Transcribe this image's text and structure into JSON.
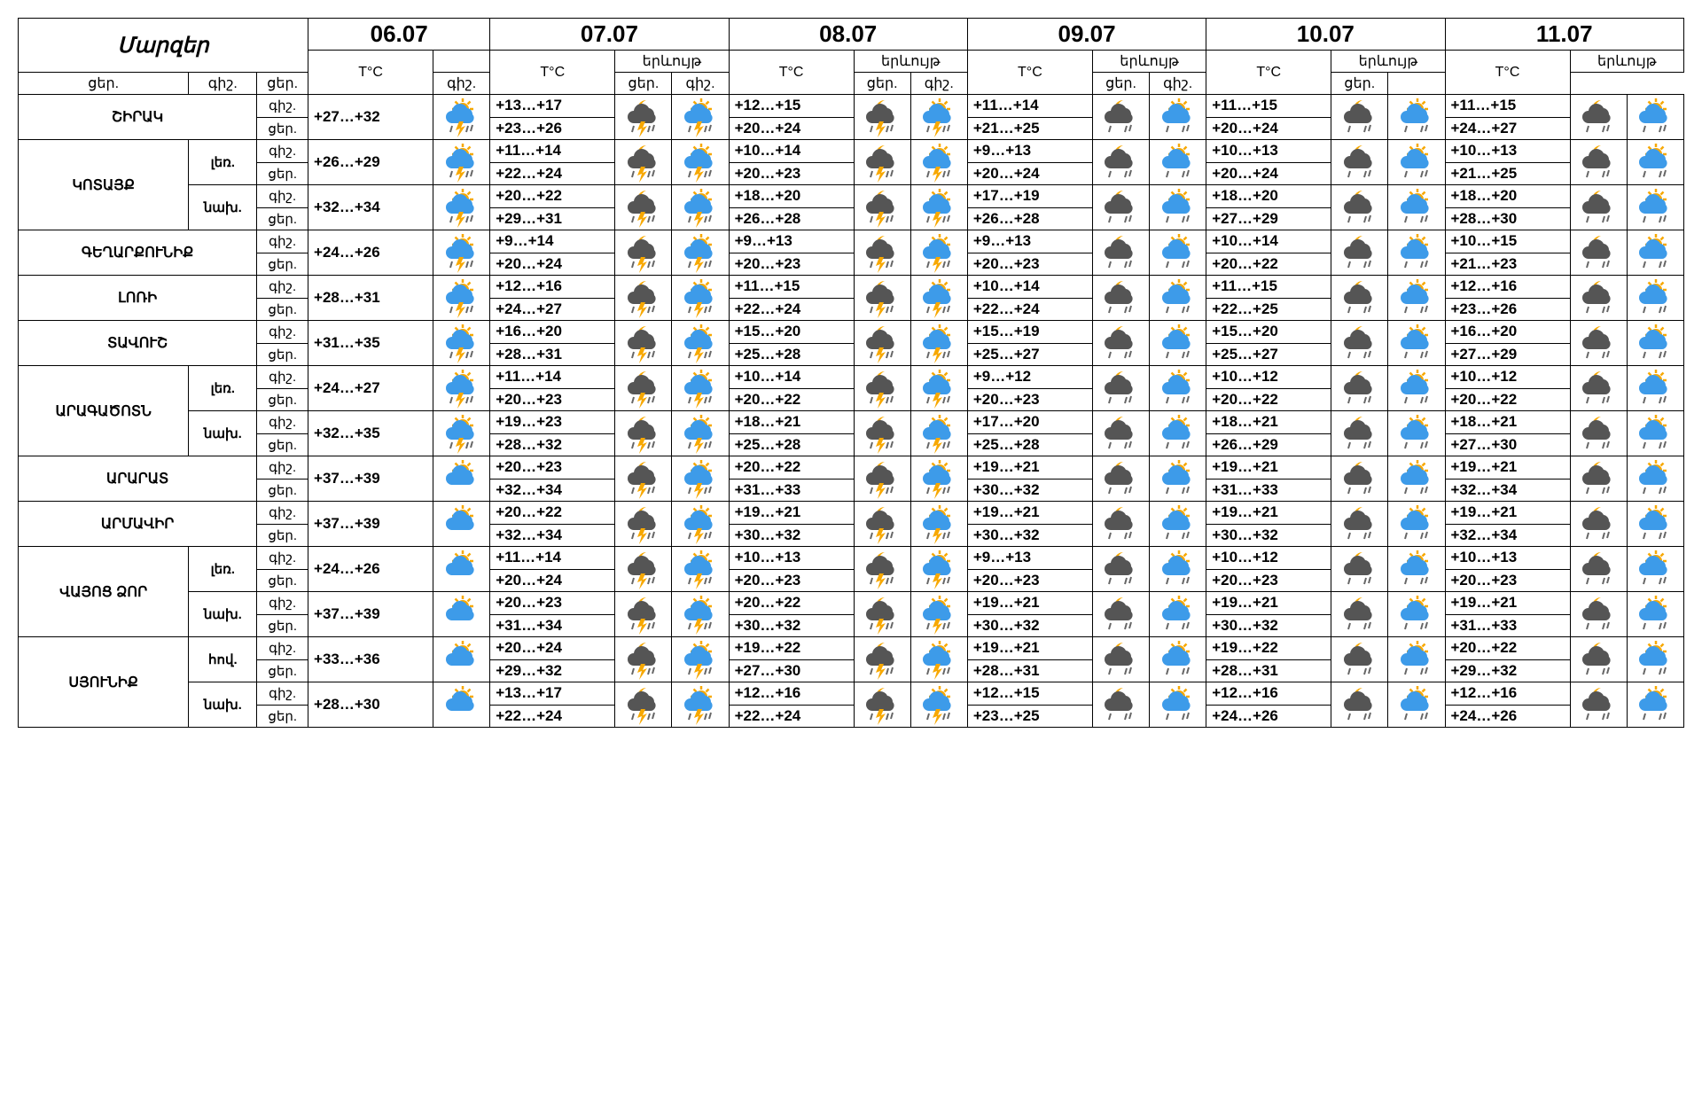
{
  "headers": {
    "regions_label": "Մարզեր",
    "dates": [
      "06.07",
      "07.07",
      "08.07",
      "09.07",
      "10.07",
      "11.07"
    ],
    "temp_label": "T°C",
    "weather_label": "երևույթ",
    "night_label": "գիշ.",
    "day_label": "ցեր."
  },
  "icons": {
    "sun_storm": {
      "sun": "#f7a800",
      "cloud": "#3d9be9",
      "bolt": "#f7a800",
      "rain": "#666"
    },
    "sun_cloud": {
      "sun": "#f7a800",
      "cloud": "#3d9be9"
    },
    "moon_storm": {
      "moon": "#f7a800",
      "cloud": "#555",
      "bolt": "#f7a800",
      "rain": "#666"
    },
    "moon_cloud": {
      "moon": "#f7a800",
      "cloud": "#555",
      "rain": "#666"
    },
    "sun_storm_b": {
      "sun": "#f7a800",
      "cloud": "#3d9be9",
      "bolt": "#f7a800",
      "rain": "#666"
    },
    "sun_rain": {
      "sun": "#f7a800",
      "cloud": "#3d9be9",
      "rain": "#666"
    }
  },
  "rows": [
    {
      "region": "ՇԻՐԱԿ",
      "subs": [
        {
          "d0": {
            "t": "+27…+32",
            "di": "sun_storm"
          },
          "d": [
            {
              "tn": "+13…+17",
              "td": "+23…+26",
              "ni": "moon_storm",
              "di": "sun_storm_b"
            },
            {
              "tn": "+12…+15",
              "td": "+20…+24",
              "ni": "moon_storm",
              "di": "sun_storm_b"
            },
            {
              "tn": "+11…+14",
              "td": "+21…+25",
              "ni": "moon_cloud",
              "di": "sun_rain"
            },
            {
              "tn": "+11…+15",
              "td": "+20…+24",
              "ni": "moon_cloud",
              "di": "sun_rain"
            },
            {
              "tn": "+11…+15",
              "td": "+24…+27",
              "ni": "moon_cloud",
              "di": "sun_rain"
            }
          ]
        }
      ]
    },
    {
      "region": "ԿՈՏԱՅՔ",
      "subs": [
        {
          "sub": "լեռ.",
          "d0": {
            "t": "+26…+29",
            "di": "sun_storm"
          },
          "d": [
            {
              "tn": "+11…+14",
              "td": "+22…+24",
              "ni": "moon_storm",
              "di": "sun_storm_b"
            },
            {
              "tn": "+10…+14",
              "td": "+20…+23",
              "ni": "moon_storm",
              "di": "sun_storm_b"
            },
            {
              "tn": "+9…+13",
              "td": "+20…+24",
              "ni": "moon_cloud",
              "di": "sun_rain"
            },
            {
              "tn": "+10…+13",
              "td": "+20…+24",
              "ni": "moon_cloud",
              "di": "sun_rain"
            },
            {
              "tn": "+10…+13",
              "td": "+21…+25",
              "ni": "moon_cloud",
              "di": "sun_rain"
            }
          ]
        },
        {
          "sub": "նախ.",
          "d0": {
            "t": "+32…+34",
            "di": "sun_storm"
          },
          "d": [
            {
              "tn": "+20…+22",
              "td": "+29…+31",
              "ni": "moon_storm",
              "di": "sun_storm_b"
            },
            {
              "tn": "+18…+20",
              "td": "+26…+28",
              "ni": "moon_storm",
              "di": "sun_storm_b"
            },
            {
              "tn": "+17…+19",
              "td": "+26…+28",
              "ni": "moon_cloud",
              "di": "sun_rain"
            },
            {
              "tn": "+18…+20",
              "td": "+27…+29",
              "ni": "moon_cloud",
              "di": "sun_rain"
            },
            {
              "tn": "+18…+20",
              "td": "+28…+30",
              "ni": "moon_cloud",
              "di": "sun_rain"
            }
          ]
        }
      ]
    },
    {
      "region": "ԳԵՂԱՐՔՈՒՆԻՔ",
      "subs": [
        {
          "d0": {
            "t": "+24…+26",
            "di": "sun_storm"
          },
          "d": [
            {
              "tn": "+9…+14",
              "td": "+20…+24",
              "ni": "moon_storm",
              "di": "sun_storm_b"
            },
            {
              "tn": "+9…+13",
              "td": "+20…+23",
              "ni": "moon_storm",
              "di": "sun_storm_b"
            },
            {
              "tn": "+9…+13",
              "td": "+20…+23",
              "ni": "moon_cloud",
              "di": "sun_rain"
            },
            {
              "tn": "+10…+14",
              "td": "+20…+22",
              "ni": "moon_cloud",
              "di": "sun_rain"
            },
            {
              "tn": "+10…+15",
              "td": "+21…+23",
              "ni": "moon_cloud",
              "di": "sun_rain"
            }
          ]
        }
      ]
    },
    {
      "region": "ԼՈՌԻ",
      "subs": [
        {
          "d0": {
            "t": "+28…+31",
            "di": "sun_storm"
          },
          "d": [
            {
              "tn": "+12…+16",
              "td": "+24…+27",
              "ni": "moon_storm",
              "di": "sun_storm_b"
            },
            {
              "tn": "+11…+15",
              "td": "+22…+24",
              "ni": "moon_storm",
              "di": "sun_storm_b"
            },
            {
              "tn": "+10…+14",
              "td": "+22…+24",
              "ni": "moon_cloud",
              "di": "sun_rain"
            },
            {
              "tn": "+11…+15",
              "td": "+22…+25",
              "ni": "moon_cloud",
              "di": "sun_rain"
            },
            {
              "tn": "+12…+16",
              "td": "+23…+26",
              "ni": "moon_cloud",
              "di": "sun_rain"
            }
          ]
        }
      ]
    },
    {
      "region": "ՏԱՎՈՒՇ",
      "subs": [
        {
          "d0": {
            "t": "+31…+35",
            "di": "sun_storm"
          },
          "d": [
            {
              "tn": "+16…+20",
              "td": "+28…+31",
              "ni": "moon_storm",
              "di": "sun_storm_b"
            },
            {
              "tn": "+15…+20",
              "td": "+25…+28",
              "ni": "moon_storm",
              "di": "sun_storm_b"
            },
            {
              "tn": "+15…+19",
              "td": "+25…+27",
              "ni": "moon_cloud",
              "di": "sun_rain"
            },
            {
              "tn": "+15…+20",
              "td": "+25…+27",
              "ni": "moon_cloud",
              "di": "sun_rain"
            },
            {
              "tn": "+16…+20",
              "td": "+27…+29",
              "ni": "moon_cloud",
              "di": "sun_rain"
            }
          ]
        }
      ]
    },
    {
      "region": "ԱՐԱԳԱԾՈՏՆ",
      "subs": [
        {
          "sub": "լեռ.",
          "d0": {
            "t": "+24…+27",
            "di": "sun_storm"
          },
          "d": [
            {
              "tn": "+11…+14",
              "td": "+20…+23",
              "ni": "moon_storm",
              "di": "sun_storm_b"
            },
            {
              "tn": "+10…+14",
              "td": "+20…+22",
              "ni": "moon_storm",
              "di": "sun_storm_b"
            },
            {
              "tn": "+9…+12",
              "td": "+20…+23",
              "ni": "moon_cloud",
              "di": "sun_rain"
            },
            {
              "tn": "+10…+12",
              "td": "+20…+22",
              "ni": "moon_cloud",
              "di": "sun_rain"
            },
            {
              "tn": "+10…+12",
              "td": "+20…+22",
              "ni": "moon_cloud",
              "di": "sun_rain"
            }
          ]
        },
        {
          "sub": "նախ.",
          "d0": {
            "t": "+32…+35",
            "di": "sun_storm"
          },
          "d": [
            {
              "tn": "+19…+23",
              "td": "+28…+32",
              "ni": "moon_storm",
              "di": "sun_storm_b"
            },
            {
              "tn": "+18…+21",
              "td": "+25…+28",
              "ni": "moon_storm",
              "di": "sun_storm_b"
            },
            {
              "tn": "+17…+20",
              "td": "+25…+28",
              "ni": "moon_cloud",
              "di": "sun_rain"
            },
            {
              "tn": "+18…+21",
              "td": "+26…+29",
              "ni": "moon_cloud",
              "di": "sun_rain"
            },
            {
              "tn": "+18…+21",
              "td": "+27…+30",
              "ni": "moon_cloud",
              "di": "sun_rain"
            }
          ]
        }
      ]
    },
    {
      "region": "ԱՐԱՐԱՏ",
      "subs": [
        {
          "d0": {
            "t": "+37…+39",
            "di": "sun_cloud"
          },
          "d": [
            {
              "tn": "+20…+23",
              "td": "+32…+34",
              "ni": "moon_storm",
              "di": "sun_storm_b"
            },
            {
              "tn": "+20…+22",
              "td": "+31…+33",
              "ni": "moon_storm",
              "di": "sun_storm_b"
            },
            {
              "tn": "+19…+21",
              "td": "+30…+32",
              "ni": "moon_cloud",
              "di": "sun_rain"
            },
            {
              "tn": "+19…+21",
              "td": "+31…+33",
              "ni": "moon_cloud",
              "di": "sun_rain"
            },
            {
              "tn": "+19…+21",
              "td": "+32…+34",
              "ni": "moon_cloud",
              "di": "sun_rain"
            }
          ]
        }
      ]
    },
    {
      "region": "ԱՐՄԱՎԻՐ",
      "subs": [
        {
          "d0": {
            "t": "+37…+39",
            "di": "sun_cloud"
          },
          "d": [
            {
              "tn": "+20…+22",
              "td": "+32…+34",
              "ni": "moon_storm",
              "di": "sun_storm_b"
            },
            {
              "tn": "+19…+21",
              "td": "+30…+32",
              "ni": "moon_storm",
              "di": "sun_storm_b"
            },
            {
              "tn": "+19…+21",
              "td": "+30…+32",
              "ni": "moon_cloud",
              "di": "sun_rain"
            },
            {
              "tn": "+19…+21",
              "td": "+30…+32",
              "ni": "moon_cloud",
              "di": "sun_rain"
            },
            {
              "tn": "+19…+21",
              "td": "+32…+34",
              "ni": "moon_cloud",
              "di": "sun_rain"
            }
          ]
        }
      ]
    },
    {
      "region": "ՎԱՅՈՑ ՁՈՐ",
      "subs": [
        {
          "sub": "լեռ.",
          "d0": {
            "t": "+24…+26",
            "di": "sun_cloud"
          },
          "d": [
            {
              "tn": "+11…+14",
              "td": "+20…+24",
              "ni": "moon_storm",
              "di": "sun_storm_b"
            },
            {
              "tn": "+10…+13",
              "td": "+20…+23",
              "ni": "moon_storm",
              "di": "sun_storm_b"
            },
            {
              "tn": "+9…+13",
              "td": "+20…+23",
              "ni": "moon_cloud",
              "di": "sun_rain"
            },
            {
              "tn": "+10…+12",
              "td": "+20…+23",
              "ni": "moon_cloud",
              "di": "sun_rain"
            },
            {
              "tn": "+10…+13",
              "td": "+20…+23",
              "ni": "moon_cloud",
              "di": "sun_rain"
            }
          ]
        },
        {
          "sub": "նախ.",
          "d0": {
            "t": "+37…+39",
            "di": "sun_cloud"
          },
          "d": [
            {
              "tn": "+20…+23",
              "td": "+31…+34",
              "ni": "moon_storm",
              "di": "sun_storm_b"
            },
            {
              "tn": "+20…+22",
              "td": "+30…+32",
              "ni": "moon_storm",
              "di": "sun_storm_b"
            },
            {
              "tn": "+19…+21",
              "td": "+30…+32",
              "ni": "moon_cloud",
              "di": "sun_rain"
            },
            {
              "tn": "+19…+21",
              "td": "+30…+32",
              "ni": "moon_cloud",
              "di": "sun_rain"
            },
            {
              "tn": "+19…+21",
              "td": "+31…+33",
              "ni": "moon_cloud",
              "di": "sun_rain"
            }
          ]
        }
      ]
    },
    {
      "region": "ՍՅՈՒՆԻՔ",
      "subs": [
        {
          "sub": "հով.",
          "d0": {
            "t": "+33…+36",
            "di": "sun_cloud"
          },
          "d": [
            {
              "tn": "+20…+24",
              "td": "+29…+32",
              "ni": "moon_storm",
              "di": "sun_storm_b"
            },
            {
              "tn": "+19…+22",
              "td": "+27…+30",
              "ni": "moon_storm",
              "di": "sun_storm_b"
            },
            {
              "tn": "+19…+21",
              "td": "+28…+31",
              "ni": "moon_cloud",
              "di": "sun_rain"
            },
            {
              "tn": "+19…+22",
              "td": "+28…+31",
              "ni": "moon_cloud",
              "di": "sun_rain"
            },
            {
              "tn": "+20…+22",
              "td": "+29…+32",
              "ni": "moon_cloud",
              "di": "sun_rain"
            }
          ]
        },
        {
          "sub": "նախ.",
          "d0": {
            "t": "+28…+30",
            "di": "sun_cloud"
          },
          "d": [
            {
              "tn": "+13…+17",
              "td": "+22…+24",
              "ni": "moon_storm",
              "di": "sun_storm_b"
            },
            {
              "tn": "+12…+16",
              "td": "+22…+24",
              "ni": "moon_storm",
              "di": "sun_storm_b"
            },
            {
              "tn": "+12…+15",
              "td": "+23…+25",
              "ni": "moon_cloud",
              "di": "sun_rain"
            },
            {
              "tn": "+12…+16",
              "td": "+24…+26",
              "ni": "moon_cloud",
              "di": "sun_rain"
            },
            {
              "tn": "+12…+16",
              "td": "+24…+26",
              "ni": "moon_cloud",
              "di": "sun_rain"
            }
          ]
        }
      ]
    }
  ]
}
